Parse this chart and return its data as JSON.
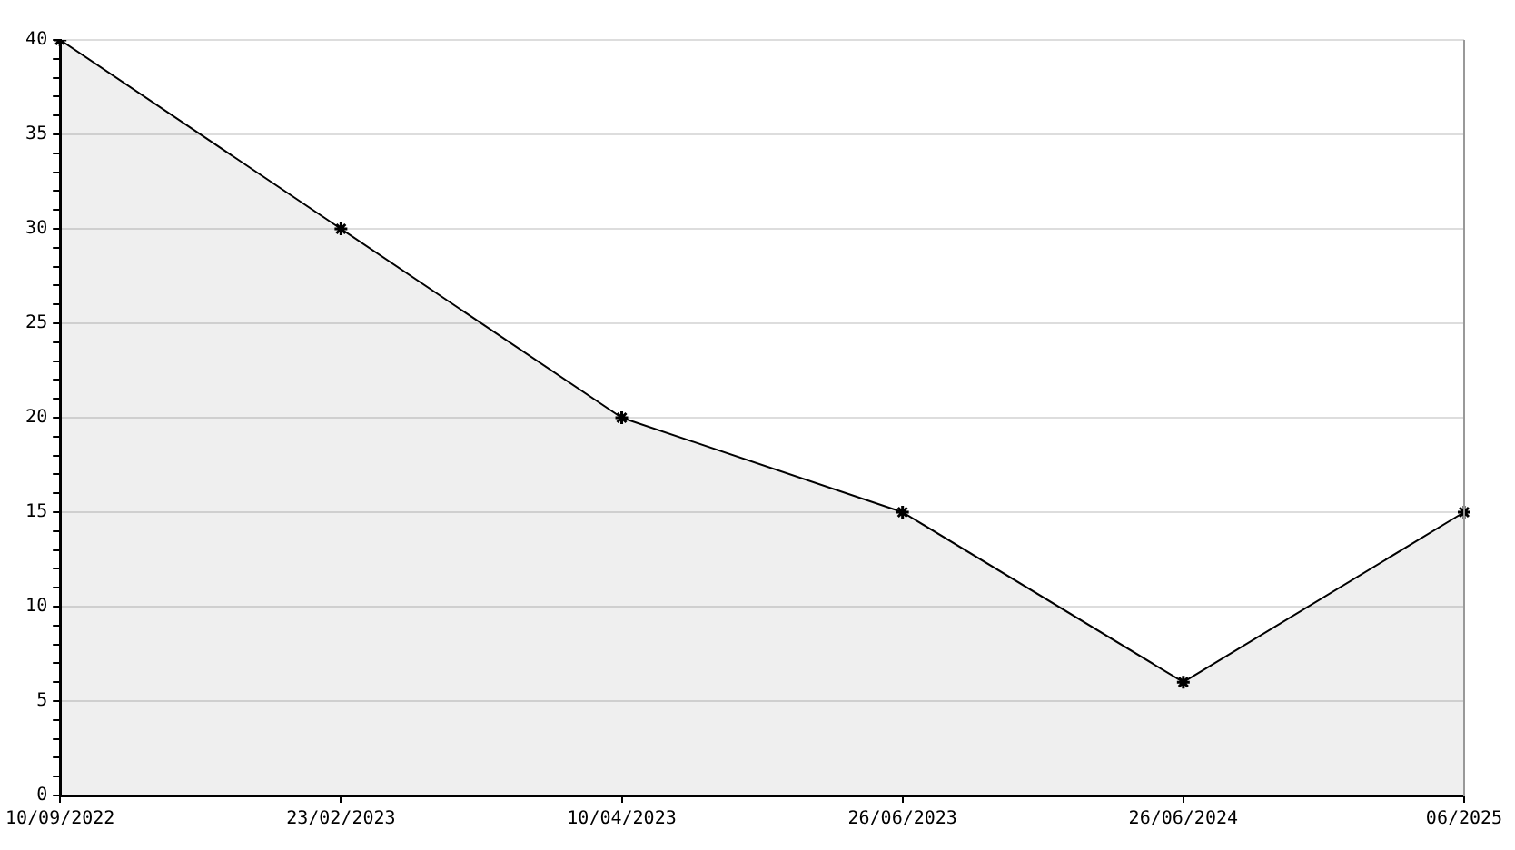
{
  "chart_data": {
    "type": "area",
    "categories": [
      "10/09/2022",
      "23/02/2023",
      "10/04/2023",
      "26/06/2023",
      "26/06/2024",
      "06/2025"
    ],
    "series": [
      {
        "color": "#000000",
        "values": [
          40,
          30,
          20,
          15,
          6,
          15
        ]
      }
    ],
    "ylim": [
      0,
      40
    ],
    "yticks": [
      0,
      {
        "value": 1,
        "label": null
      },
      {
        "value": 2,
        "label": null
      },
      {
        "value": 3,
        "label": null
      },
      {
        "value": 4,
        "label": null
      },
      5,
      {
        "value": 6,
        "label": null
      },
      {
        "value": 7,
        "label": null
      },
      {
        "value": 8,
        "label": null
      },
      {
        "value": 9,
        "label": null
      },
      10,
      {
        "value": 11,
        "label": null
      },
      {
        "value": 12,
        "label": null
      },
      {
        "value": 13,
        "label": null
      },
      {
        "value": 14,
        "label": null
      },
      15,
      {
        "value": 16,
        "label": null
      },
      {
        "value": 17,
        "label": null
      },
      {
        "value": 18,
        "label": null
      },
      {
        "value": 19,
        "label": null
      },
      20,
      {
        "value": 21,
        "label": null
      },
      {
        "value": 22,
        "label": null
      },
      {
        "value": 23,
        "label": null
      },
      {
        "value": 24,
        "label": null
      },
      25,
      {
        "value": 26,
        "label": null
      },
      {
        "value": 27,
        "label": null
      },
      {
        "value": 28,
        "label": null
      },
      {
        "value": 29,
        "label": null
      },
      30,
      {
        "value": 31,
        "label": null
      },
      {
        "value": 32,
        "label": null
      },
      {
        "value": 33,
        "label": null
      },
      {
        "value": 34,
        "label": null
      },
      35,
      {
        "value": 36,
        "label": null
      },
      {
        "value": 37,
        "label": null
      },
      {
        "value": 38,
        "label": null
      },
      {
        "value": 39,
        "label": null
      },
      40
    ],
    "grid": "y",
    "legend": false,
    "marker": "cross",
    "line_style": "solid"
  }
}
